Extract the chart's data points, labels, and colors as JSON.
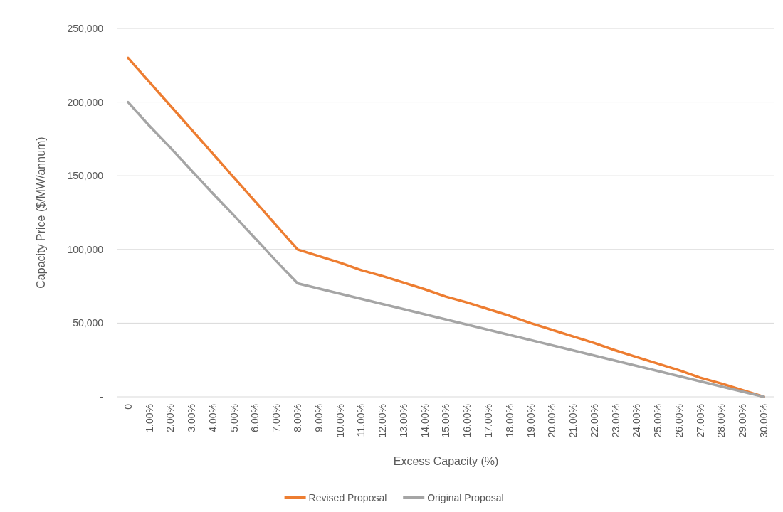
{
  "chart_data": {
    "type": "line",
    "xlabel": "Excess Capacity (%)",
    "ylabel": "Capacity Price ($/MW/annum)",
    "categories": [
      "0",
      "1.00%",
      "2.00%",
      "3.00%",
      "4.00%",
      "5.00%",
      "6.00%",
      "7.00%",
      "8.00%",
      "9.00%",
      "10.00%",
      "11.00%",
      "12.00%",
      "13.00%",
      "14.00%",
      "15.00%",
      "16.00%",
      "17.00%",
      "18.00%",
      "19.00%",
      "20.00%",
      "21.00%",
      "22.00%",
      "23.00%",
      "24.00%",
      "25.00%",
      "26.00%",
      "27.00%",
      "28.00%",
      "29.00%",
      "30.00%"
    ],
    "series": [
      {
        "name": "Revised Proposal",
        "color": "#ed7d31",
        "values": [
          230000,
          213750,
          197500,
          181250,
          165000,
          148750,
          132500,
          116250,
          100000,
          95500,
          91000,
          86000,
          82000,
          77500,
          73000,
          68000,
          64000,
          59500,
          55000,
          50000,
          45500,
          41000,
          36500,
          31500,
          27000,
          22500,
          18000,
          13000,
          9000,
          4500,
          0
        ]
      },
      {
        "name": "Original Proposal",
        "color": "#a5a5a5",
        "values": [
          200000,
          184000,
          169000,
          153500,
          138000,
          123000,
          107500,
          92000,
          77000,
          73500,
          70000,
          66500,
          63000,
          59500,
          56000,
          52500,
          49000,
          45500,
          42000,
          38500,
          35000,
          31500,
          28000,
          24500,
          21000,
          17500,
          14000,
          10500,
          7000,
          3500,
          0
        ]
      }
    ],
    "ylim": [
      0,
      250000
    ],
    "yticks": [
      {
        "value": 0,
        "label": "-"
      },
      {
        "value": 50000,
        "label": "50,000"
      },
      {
        "value": 100000,
        "label": "100,000"
      },
      {
        "value": 150000,
        "label": "150,000"
      },
      {
        "value": 200000,
        "label": "200,000"
      },
      {
        "value": 250000,
        "label": "250,000"
      }
    ],
    "grid": "y",
    "legend": "bottom",
    "marker": "none",
    "line_style": "solid"
  }
}
